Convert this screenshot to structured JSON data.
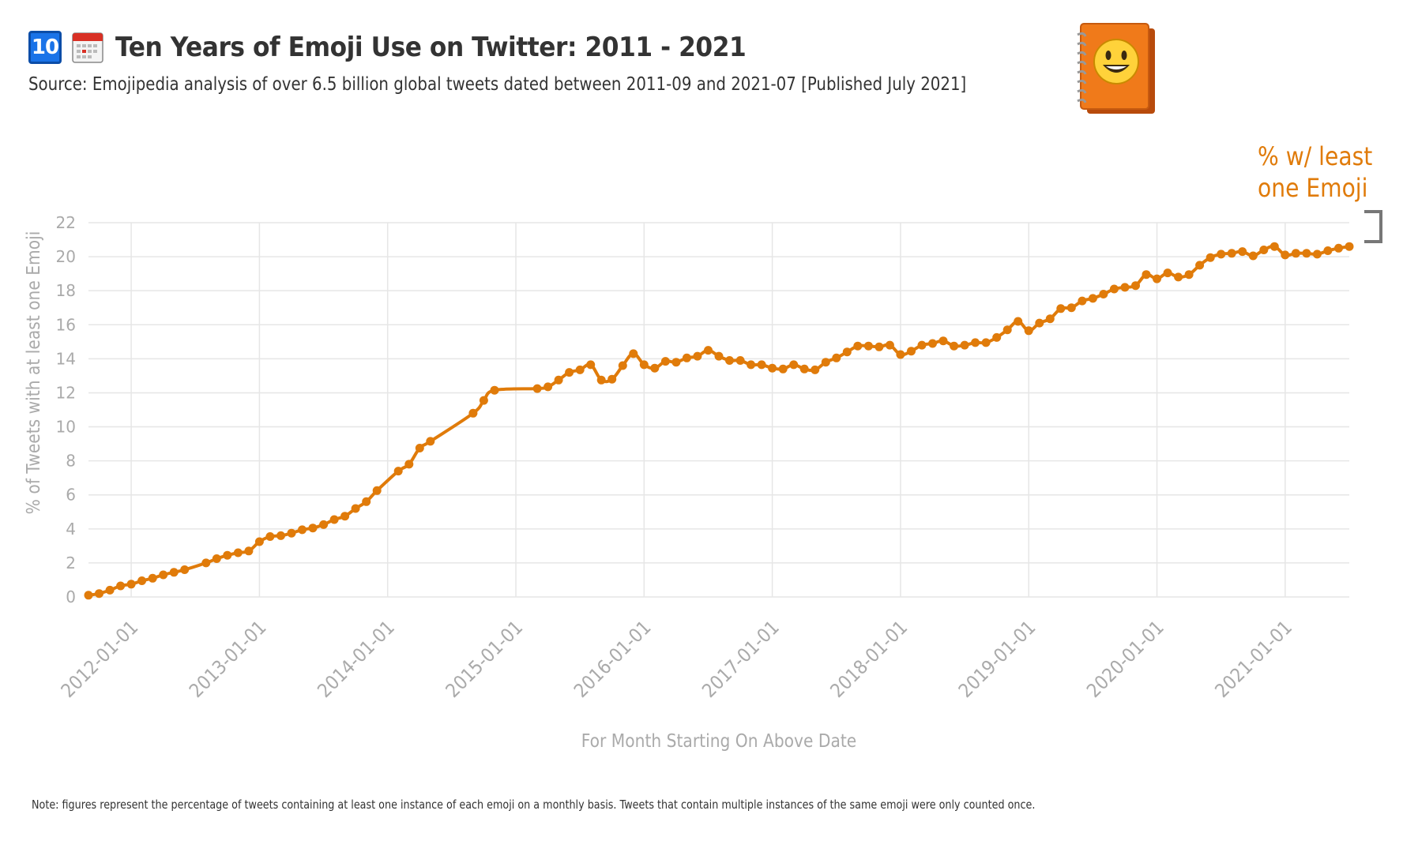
{
  "header": {
    "badge_text": "10",
    "title": "Ten Years of Emoji Use on Twitter: 2011 - 2021",
    "subtitle": "Source: Emojipedia analysis of over 6.5 billion global tweets dated between 2011-09 and 2021-07 [Published July 2021]"
  },
  "note": "Note: figures represent the percentage of tweets containing at least one instance of each emoji on a monthly basis. Tweets that contain multiple instances of the same emoji were only counted once.",
  "icons": {
    "badge": "keycap-ten-icon",
    "calendar": "calendar-icon",
    "logo": "emojipedia-logo-icon"
  },
  "colors": {
    "series": "#e07b0a",
    "grid": "#e6e6e6",
    "axis_text": "#aaaaaa",
    "badge": "#1a73e8"
  },
  "chart_data": {
    "type": "line",
    "xlabel": "For Month Starting On Above Date",
    "ylabel": "% of Tweets with at least one Emoji",
    "x_range": [
      "2011-09-01",
      "2021-07-01"
    ],
    "ylim": [
      0,
      22
    ],
    "y_ticks": [
      0,
      2,
      4,
      6,
      8,
      10,
      12,
      14,
      16,
      18,
      20,
      22
    ],
    "x_ticks": [
      "2012-01-01",
      "2013-01-01",
      "2014-01-01",
      "2015-01-01",
      "2016-01-01",
      "2017-01-01",
      "2018-01-01",
      "2019-01-01",
      "2020-01-01",
      "2021-01-01"
    ],
    "grid": true,
    "legend": "none",
    "series": [
      {
        "name": "% w/ least one Emoji",
        "x": [
          "2011-09-01",
          "2011-10-01",
          "2011-11-01",
          "2011-12-01",
          "2012-01-01",
          "2012-02-01",
          "2012-03-01",
          "2012-04-01",
          "2012-05-01",
          "2012-06-01",
          "2012-08-01",
          "2012-09-01",
          "2012-10-01",
          "2012-11-01",
          "2012-12-01",
          "2013-01-01",
          "2013-02-01",
          "2013-03-01",
          "2013-04-01",
          "2013-05-01",
          "2013-06-01",
          "2013-07-01",
          "2013-08-01",
          "2013-09-01",
          "2013-10-01",
          "2013-11-01",
          "2013-12-01",
          "2014-02-01",
          "2014-03-01",
          "2014-04-01",
          "2014-05-01",
          "2014-09-01",
          "2014-10-01",
          "2014-11-01",
          "2015-03-01",
          "2015-04-01",
          "2015-05-01",
          "2015-06-01",
          "2015-07-01",
          "2015-08-01",
          "2015-09-01",
          "2015-10-01",
          "2015-11-01",
          "2015-12-01",
          "2016-01-01",
          "2016-02-01",
          "2016-03-01",
          "2016-04-01",
          "2016-05-01",
          "2016-06-01",
          "2016-07-01",
          "2016-08-01",
          "2016-09-01",
          "2016-10-01",
          "2016-11-01",
          "2016-12-01",
          "2017-01-01",
          "2017-02-01",
          "2017-03-01",
          "2017-04-01",
          "2017-05-01",
          "2017-06-01",
          "2017-07-01",
          "2017-08-01",
          "2017-09-01",
          "2017-10-01",
          "2017-11-01",
          "2017-12-01",
          "2018-01-01",
          "2018-02-01",
          "2018-03-01",
          "2018-04-01",
          "2018-05-01",
          "2018-06-01",
          "2018-07-01",
          "2018-08-01",
          "2018-09-01",
          "2018-10-01",
          "2018-11-01",
          "2018-12-01",
          "2019-01-01",
          "2019-02-01",
          "2019-03-01",
          "2019-04-01",
          "2019-05-01",
          "2019-06-01",
          "2019-07-01",
          "2019-08-01",
          "2019-09-01",
          "2019-10-01",
          "2019-11-01",
          "2019-12-01",
          "2020-01-01",
          "2020-02-01",
          "2020-03-01",
          "2020-04-01",
          "2020-05-01",
          "2020-06-01",
          "2020-07-01",
          "2020-08-01",
          "2020-09-01",
          "2020-10-01",
          "2020-11-01",
          "2020-12-01",
          "2021-01-01",
          "2021-02-01",
          "2021-03-01",
          "2021-04-01",
          "2021-05-01",
          "2021-06-01",
          "2021-07-01"
        ],
        "y": [
          0.1,
          0.2,
          0.4,
          0.65,
          0.75,
          0.95,
          1.1,
          1.3,
          1.45,
          1.6,
          2.0,
          2.25,
          2.45,
          2.6,
          2.7,
          3.25,
          3.55,
          3.6,
          3.75,
          3.95,
          4.05,
          4.25,
          4.55,
          4.75,
          5.2,
          5.6,
          6.25,
          7.4,
          7.8,
          8.75,
          9.15,
          10.8,
          11.55,
          12.15,
          12.25,
          12.35,
          12.75,
          13.2,
          13.35,
          13.65,
          12.75,
          12.8,
          13.6,
          14.3,
          13.65,
          13.45,
          13.85,
          13.8,
          14.05,
          14.15,
          14.5,
          14.15,
          13.9,
          13.9,
          13.65,
          13.65,
          13.45,
          13.4,
          13.65,
          13.4,
          13.35,
          13.8,
          14.05,
          14.4,
          14.75,
          14.75,
          14.7,
          14.8,
          14.25,
          14.45,
          14.8,
          14.9,
          15.05,
          14.75,
          14.8,
          14.95,
          14.95,
          15.25,
          15.7,
          16.2,
          15.65,
          16.1,
          16.35,
          16.95,
          17.0,
          17.4,
          17.55,
          17.8,
          18.1,
          18.2,
          18.3,
          18.95,
          18.7,
          19.05,
          18.8,
          18.95,
          19.5,
          19.95,
          20.15,
          20.2,
          20.3,
          20.05,
          20.4,
          20.6,
          20.1,
          20.2,
          20.2,
          20.15,
          20.35,
          20.5,
          20.6
        ]
      }
    ]
  }
}
